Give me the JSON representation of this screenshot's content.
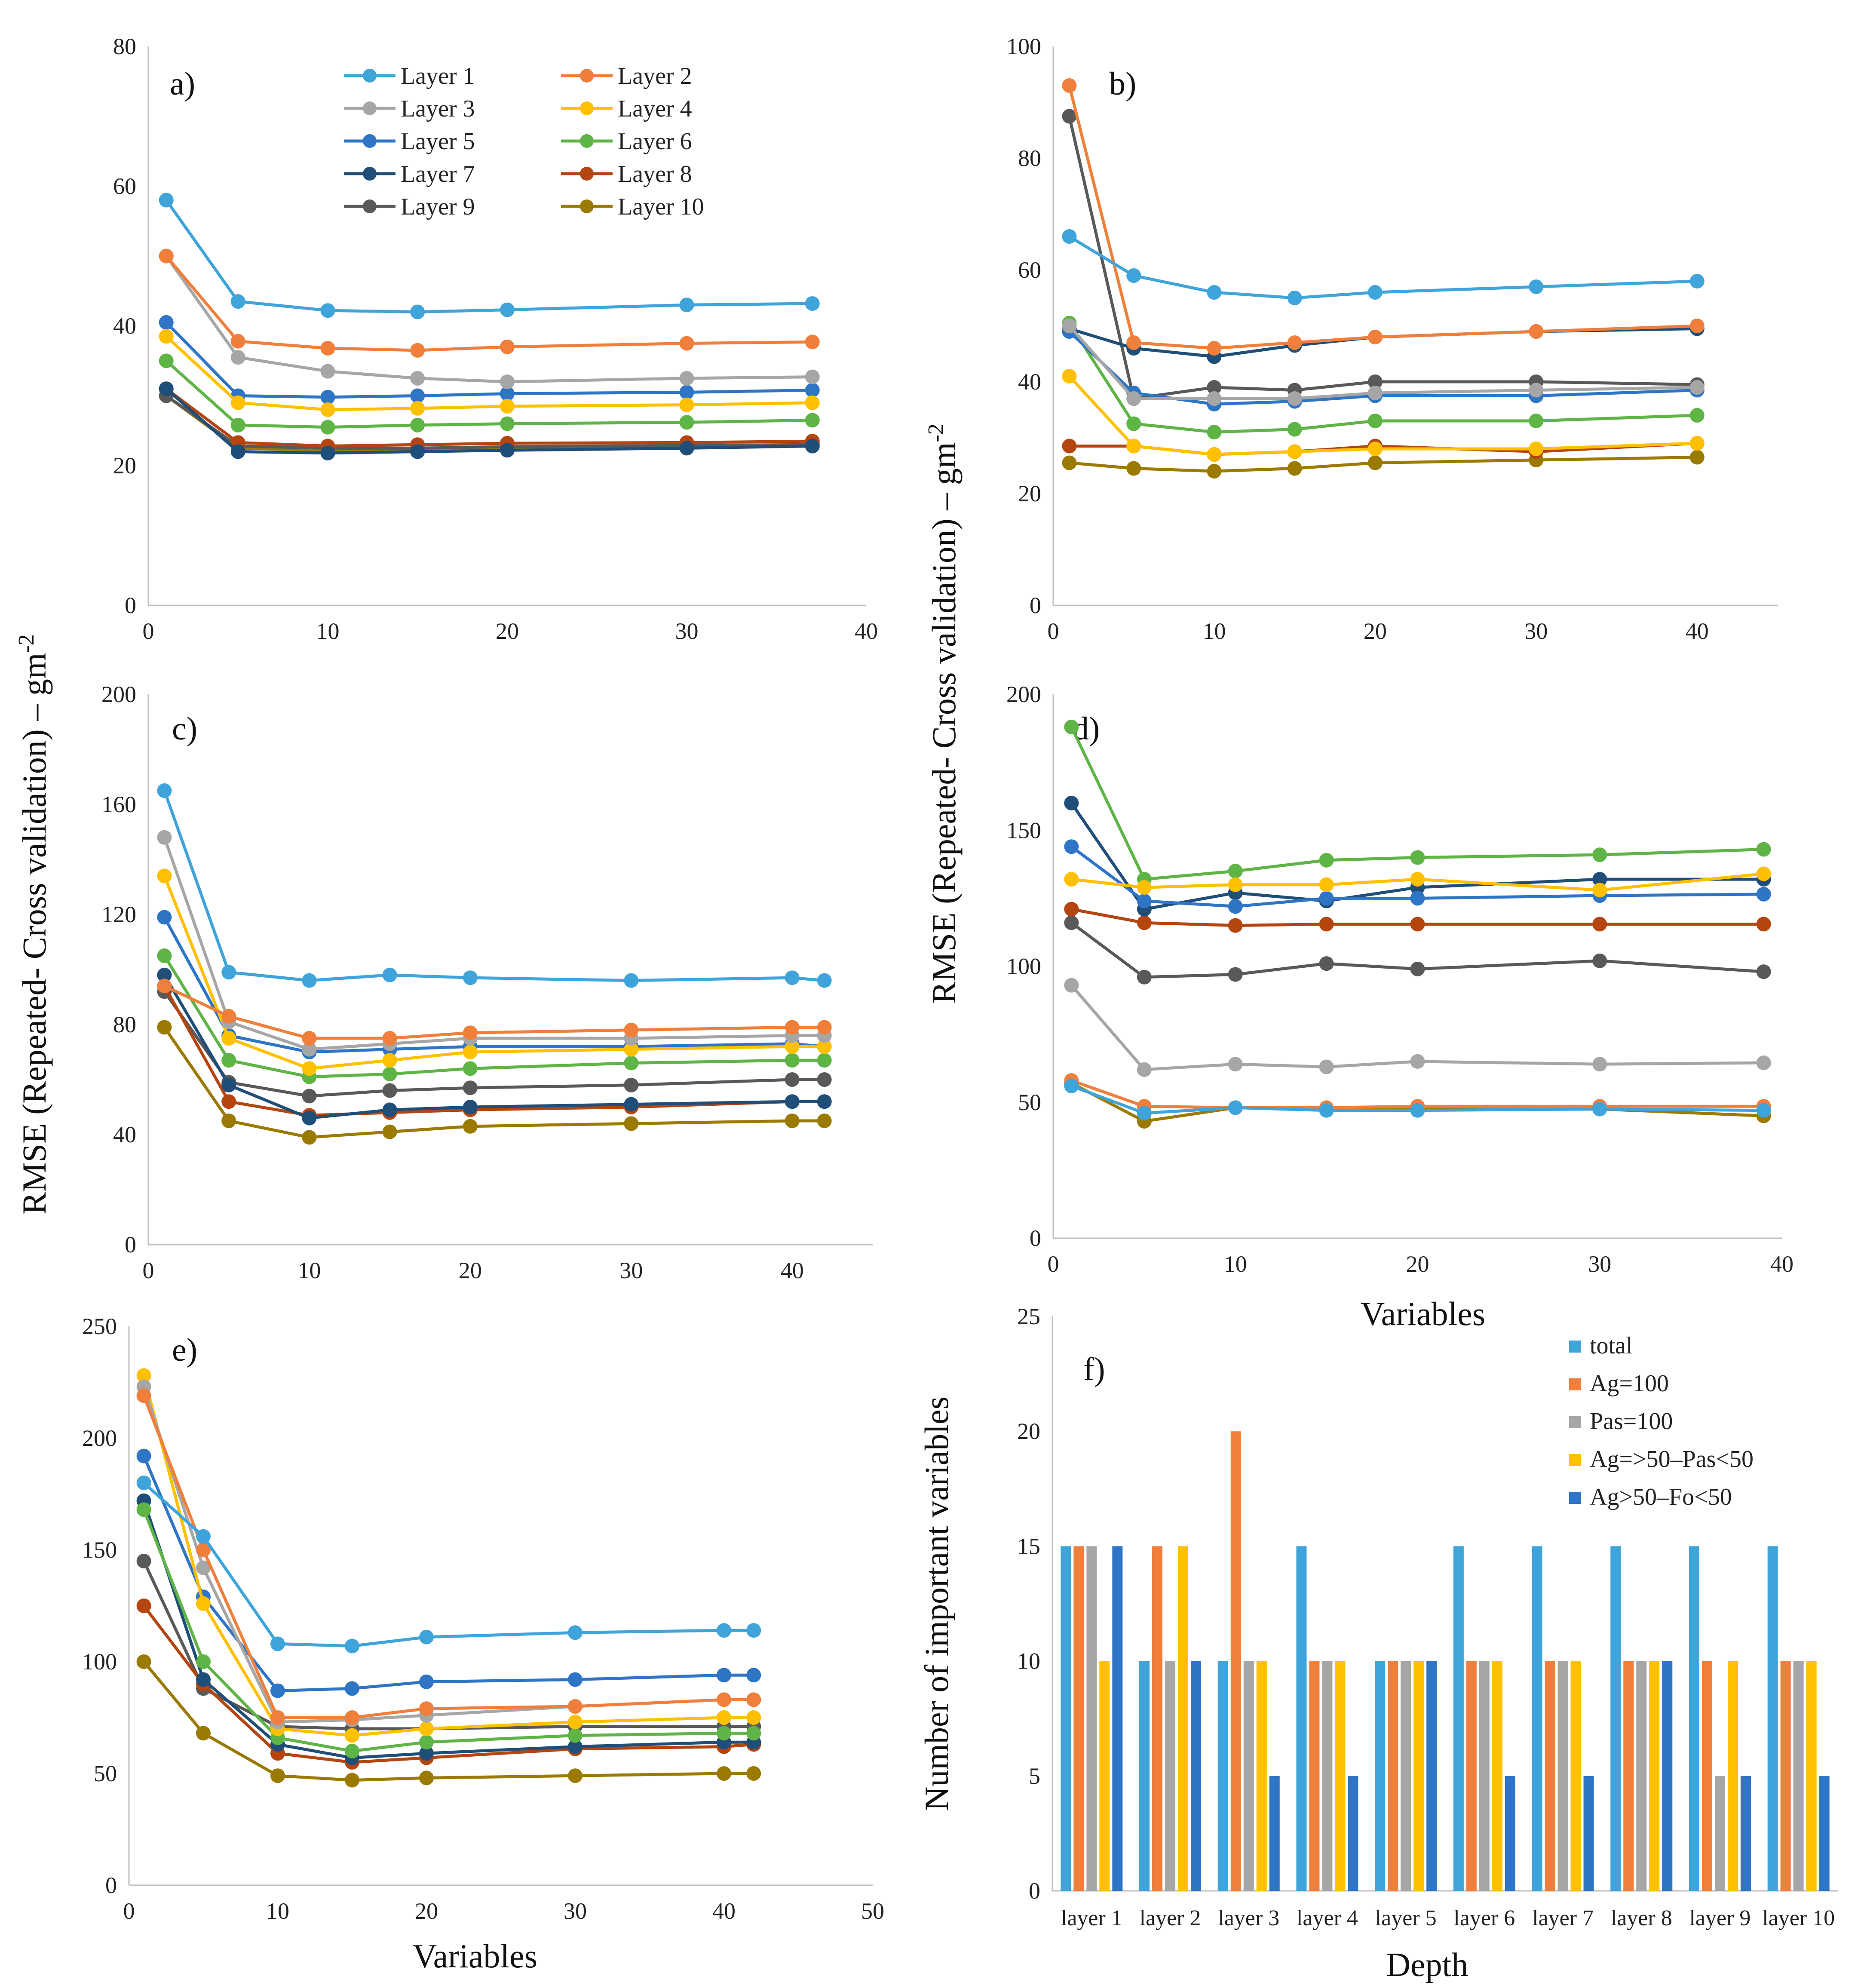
{
  "shared": {
    "ylabel_top": "RMSE (Repeated- Cross validation) – gm",
    "ylabel_top_sup": "-2",
    "ylabel_right": "RMSE (Repeated- Cross validation) – gm",
    "ylabel_right_sup": "-2",
    "xlabel_d": "Variables",
    "xlabel_e": "Variables"
  },
  "colors": {
    "Layer 1": "#3fa4da",
    "Layer 2": "#f07f3c",
    "Layer 3": "#a6a6a6",
    "Layer 4": "#ffc000",
    "Layer 5": "#2e75c6",
    "Layer 6": "#5fb446",
    "Layer 7": "#1f4e79",
    "Layer 8": "#b4450f",
    "Layer 9": "#595959",
    "Layer 10": "#9a7a00",
    "total": "#3fa4da",
    "Ag=100": "#f07f3c",
    "Pas=100": "#a6a6a6",
    "Ag=>50–Pas<50": "#ffc000",
    "Ag>50–Fo<50": "#2e75c6"
  },
  "chart_data": [
    {
      "id": "a",
      "label": "a)",
      "type": "line",
      "xlim": [
        0,
        40
      ],
      "ylim": [
        0,
        80
      ],
      "xticks": [
        0,
        10,
        20,
        30,
        40
      ],
      "yticks": [
        0,
        20,
        40,
        60,
        80
      ],
      "x": [
        1,
        5,
        10,
        15,
        20,
        30,
        37
      ],
      "legend": "top",
      "legend_order": [
        "Layer 1",
        "Layer 2",
        "Layer 3",
        "Layer 4",
        "Layer 5",
        "Layer 6",
        "Layer 7",
        "Layer 8",
        "Layer 9",
        "Layer 10"
      ],
      "series": [
        {
          "name": "Layer 1",
          "values": [
            58,
            43.5,
            42.2,
            42,
            42.3,
            43,
            43.2
          ]
        },
        {
          "name": "Layer 2",
          "values": [
            50,
            37.8,
            36.8,
            36.5,
            37,
            37.5,
            37.7
          ]
        },
        {
          "name": "Layer 3",
          "values": [
            50,
            35.5,
            33.5,
            32.5,
            32,
            32.5,
            32.7
          ]
        },
        {
          "name": "Layer 4",
          "values": [
            38.5,
            29,
            28,
            28.2,
            28.5,
            28.7,
            29
          ]
        },
        {
          "name": "Layer 5",
          "values": [
            40.5,
            30,
            29.8,
            30,
            30.3,
            30.5,
            30.8
          ]
        },
        {
          "name": "Layer 6",
          "values": [
            35,
            25.8,
            25.5,
            25.8,
            26,
            26.2,
            26.5
          ]
        },
        {
          "name": "Layer 7",
          "values": [
            31,
            22,
            21.8,
            22,
            22.2,
            22.5,
            22.8
          ]
        },
        {
          "name": "Layer 8",
          "values": [
            31,
            23.3,
            22.8,
            23,
            23.2,
            23.3,
            23.5
          ]
        },
        {
          "name": "Layer 9",
          "values": [
            30,
            22.8,
            22.5,
            22.5,
            22.7,
            22.9,
            23
          ]
        },
        {
          "name": "Layer 10",
          "values": [
            30,
            22.5,
            22.2,
            22.3,
            22.5,
            22.7,
            22.8
          ]
        }
      ]
    },
    {
      "id": "b",
      "label": "b)",
      "type": "line",
      "xlim": [
        0,
        45
      ],
      "ylim": [
        0,
        100
      ],
      "xticks": [
        0,
        10,
        20,
        30,
        40
      ],
      "yticks": [
        0,
        20,
        40,
        60,
        80,
        100
      ],
      "x": [
        1,
        5,
        10,
        15,
        20,
        30,
        40
      ],
      "series": [
        {
          "name": "Layer 1",
          "values": [
            66,
            59,
            56,
            55,
            56,
            57,
            58
          ]
        },
        {
          "name": "Layer 2",
          "values": [
            93,
            47,
            46,
            47,
            48,
            49,
            50
          ]
        },
        {
          "name": "Layer 3",
          "values": [
            50,
            37,
            37,
            37,
            38,
            38.5,
            39
          ]
        },
        {
          "name": "Layer 4",
          "values": [
            41,
            28.5,
            27,
            27.5,
            28,
            28,
            29
          ]
        },
        {
          "name": "Layer 5",
          "values": [
            49,
            38,
            36,
            36.5,
            37.5,
            37.5,
            38.5
          ]
        },
        {
          "name": "Layer 6",
          "values": [
            50.5,
            32.5,
            31,
            31.5,
            33,
            33,
            34
          ]
        },
        {
          "name": "Layer 7",
          "values": [
            49.5,
            46,
            44.5,
            46.5,
            48,
            49,
            49.5
          ]
        },
        {
          "name": "Layer 8",
          "values": [
            28.5,
            28.5,
            27,
            27.5,
            28.5,
            27.5,
            29
          ]
        },
        {
          "name": "Layer 9",
          "values": [
            87.5,
            37,
            39,
            38.5,
            40,
            40,
            39.5
          ]
        },
        {
          "name": "Layer 10",
          "values": [
            25.5,
            24.5,
            24,
            24.5,
            25.5,
            26,
            26.5
          ]
        }
      ]
    },
    {
      "id": "c",
      "label": "c)",
      "type": "line",
      "xlim": [
        0,
        45
      ],
      "ylim": [
        0,
        200
      ],
      "xticks": [
        0,
        10,
        20,
        30,
        40
      ],
      "yticks": [
        0,
        40,
        80,
        120,
        160,
        200
      ],
      "x": [
        1,
        5,
        10,
        15,
        20,
        30,
        40,
        42
      ],
      "series": [
        {
          "name": "Layer 1",
          "values": [
            165,
            99,
            96,
            98,
            97,
            96,
            97,
            96
          ]
        },
        {
          "name": "Layer 2",
          "values": [
            94,
            83,
            75,
            75,
            77,
            78,
            79,
            79
          ]
        },
        {
          "name": "Layer 3",
          "values": [
            148,
            81,
            71,
            73,
            75,
            75,
            76,
            76
          ]
        },
        {
          "name": "Layer 4",
          "values": [
            134,
            75,
            64,
            67,
            70,
            71,
            72,
            72
          ]
        },
        {
          "name": "Layer 5",
          "values": [
            119,
            76,
            70,
            71,
            72,
            72,
            73,
            72
          ]
        },
        {
          "name": "Layer 6",
          "values": [
            105,
            67,
            61,
            62,
            64,
            66,
            67,
            67
          ]
        },
        {
          "name": "Layer 7",
          "values": [
            98,
            58,
            46,
            49,
            50,
            51,
            52,
            52
          ]
        },
        {
          "name": "Layer 8",
          "values": [
            94,
            52,
            47,
            48,
            49,
            50,
            52,
            52
          ]
        },
        {
          "name": "Layer 9",
          "values": [
            92,
            59,
            54,
            56,
            57,
            58,
            60,
            60
          ]
        },
        {
          "name": "Layer 10",
          "values": [
            79,
            45,
            39,
            41,
            43,
            44,
            45,
            45
          ]
        }
      ]
    },
    {
      "id": "d",
      "label": "d)",
      "type": "line",
      "xlim": [
        0,
        40
      ],
      "ylim": [
        0,
        200
      ],
      "xticks": [
        0,
        10,
        20,
        30,
        40
      ],
      "yticks": [
        0,
        50,
        100,
        150,
        200
      ],
      "x": [
        1,
        5,
        10,
        15,
        20,
        30,
        39
      ],
      "series": [
        {
          "name": "Layer 1",
          "values": [
            56,
            46,
            48,
            47,
            47,
            47.5,
            47
          ]
        },
        {
          "name": "Layer 2",
          "values": [
            58,
            48.5,
            48,
            48,
            48.5,
            48.5,
            48.5
          ]
        },
        {
          "name": "Layer 3",
          "values": [
            93,
            62,
            64,
            63,
            65,
            64,
            64.5
          ]
        },
        {
          "name": "Layer 4",
          "values": [
            132,
            129,
            130,
            130,
            132,
            128,
            134
          ]
        },
        {
          "name": "Layer 5",
          "values": [
            144,
            124,
            122,
            125,
            125,
            126,
            126.5
          ]
        },
        {
          "name": "Layer 6",
          "values": [
            188,
            132,
            135,
            139,
            140,
            141,
            143
          ]
        },
        {
          "name": "Layer 7",
          "values": [
            160,
            121,
            127,
            124,
            129,
            132,
            132
          ]
        },
        {
          "name": "Layer 8",
          "values": [
            121,
            116,
            115,
            115.5,
            115.5,
            115.5,
            115.5
          ]
        },
        {
          "name": "Layer 9",
          "values": [
            116,
            96,
            97,
            101,
            99,
            102,
            98
          ]
        },
        {
          "name": "Layer 10",
          "values": [
            57,
            43,
            48,
            47.5,
            47.5,
            47.5,
            45
          ]
        }
      ]
    },
    {
      "id": "e",
      "label": "e)",
      "type": "line",
      "xlim": [
        0,
        50
      ],
      "ylim": [
        0,
        250
      ],
      "xticks": [
        0,
        10,
        20,
        30,
        40,
        50
      ],
      "yticks": [
        0,
        50,
        100,
        150,
        200,
        250
      ],
      "x": [
        1,
        5,
        10,
        15,
        20,
        30,
        40,
        42
      ],
      "series": [
        {
          "name": "Layer 1",
          "values": [
            180,
            156,
            108,
            107,
            111,
            113,
            114,
            114
          ]
        },
        {
          "name": "Layer 2",
          "values": [
            219,
            150,
            75,
            75,
            79,
            80,
            83,
            83
          ]
        },
        {
          "name": "Layer 3",
          "values": [
            223,
            142,
            73,
            74,
            76,
            80,
            83,
            83
          ]
        },
        {
          "name": "Layer 4",
          "values": [
            228,
            126,
            70,
            67,
            70,
            73,
            75,
            75
          ]
        },
        {
          "name": "Layer 5",
          "values": [
            192,
            129,
            87,
            88,
            91,
            92,
            94,
            94
          ]
        },
        {
          "name": "Layer 6",
          "values": [
            168,
            100,
            66,
            60,
            64,
            67,
            68,
            68
          ]
        },
        {
          "name": "Layer 7",
          "values": [
            172,
            92,
            63,
            57,
            59,
            62,
            64,
            64
          ]
        },
        {
          "name": "Layer 8",
          "values": [
            125,
            90,
            59,
            55,
            57,
            61,
            62,
            63
          ]
        },
        {
          "name": "Layer 9",
          "values": [
            145,
            88,
            71,
            70,
            70,
            71,
            71,
            71
          ]
        },
        {
          "name": "Layer 10",
          "values": [
            100,
            68,
            49,
            47,
            48,
            49,
            50,
            50
          ]
        }
      ]
    },
    {
      "id": "f",
      "label": "f)",
      "type": "bar",
      "ylim": [
        0,
        25
      ],
      "yticks": [
        0,
        5,
        10,
        15,
        20,
        25
      ],
      "ylabel": "Number of important variables",
      "xlabel": "Depth",
      "legend": "top-right",
      "categories": [
        "layer 1",
        "layer 2",
        "layer 3",
        "layer 4",
        "layer 5",
        "layer 6",
        "layer 7",
        "layer 8",
        "layer 9",
        "layer 10"
      ],
      "series": [
        {
          "name": "total",
          "values": [
            15,
            10,
            10,
            15,
            10,
            15,
            15,
            15,
            15,
            15
          ]
        },
        {
          "name": "Ag=100",
          "values": [
            15,
            15,
            20,
            10,
            10,
            10,
            10,
            10,
            10,
            10
          ]
        },
        {
          "name": "Pas=100",
          "values": [
            15,
            10,
            10,
            10,
            10,
            10,
            10,
            10,
            5,
            10
          ]
        },
        {
          "name": "Ag=>50–Pas<50",
          "values": [
            10,
            15,
            10,
            10,
            10,
            10,
            10,
            10,
            10,
            10
          ]
        },
        {
          "name": "Ag>50–Fo<50",
          "values": [
            15,
            10,
            5,
            5,
            10,
            5,
            5,
            10,
            5,
            5
          ]
        }
      ]
    }
  ]
}
